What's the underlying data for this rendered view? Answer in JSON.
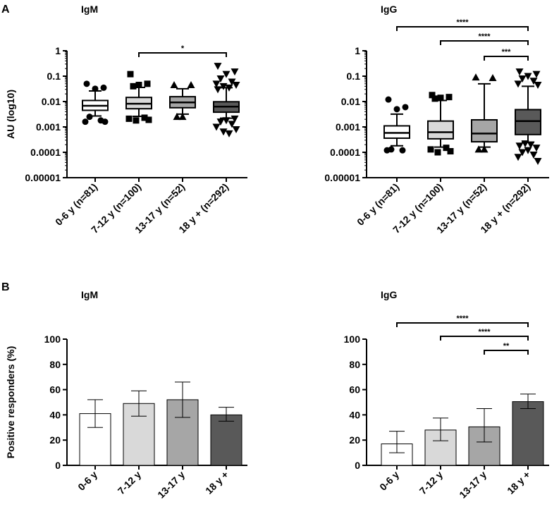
{
  "panels": [
    {
      "letter": "A"
    },
    {
      "letter": "B"
    }
  ],
  "chart_data": [
    {
      "type": "boxplot",
      "panel": "A",
      "title": "IgM",
      "ylabel": "AU (log10)",
      "yscale": "log",
      "ylim": [
        1e-05,
        1
      ],
      "yticks": [
        {
          "value": 1,
          "label": "1"
        },
        {
          "value": 0.1,
          "label": "0.1"
        },
        {
          "value": 0.01,
          "label": "0.01"
        },
        {
          "value": 0.001,
          "label": "0.001"
        },
        {
          "value": 0.0001,
          "label": "0.0001"
        },
        {
          "value": 1e-05,
          "label": "0.00001"
        }
      ],
      "categories": [
        "0-6 y (n=81)",
        "7-12 y (n=100)",
        "13-17 y (n=52)",
        "18 y + (n=292)"
      ],
      "fills": [
        "#ffffff",
        "#d9d9d9",
        "#a6a6a6",
        "#595959"
      ],
      "markers": [
        "circle",
        "square",
        "triangle-up",
        "triangle-down"
      ],
      "boxes": [
        {
          "whisker_low": 0.0027,
          "q1": 0.0045,
          "median": 0.0068,
          "q3": 0.011,
          "whisker_high": 0.026,
          "outliers": [
            0.05,
            0.035,
            0.032,
            0.0025,
            0.0018,
            0.0016,
            0.0016
          ]
        },
        {
          "whisker_low": 0.0026,
          "q1": 0.0052,
          "median": 0.0082,
          "q3": 0.0145,
          "whisker_high": 0.036,
          "outliers": [
            0.12,
            0.05,
            0.045,
            0.04,
            0.0023,
            0.0021,
            0.0019,
            0.0018
          ]
        },
        {
          "whisker_low": 0.0032,
          "q1": 0.0057,
          "median": 0.0092,
          "q3": 0.0155,
          "whisker_high": 0.032,
          "outliers": [
            0.045,
            0.045,
            0.0025,
            0.0025
          ]
        },
        {
          "whisker_low": 0.0022,
          "q1": 0.0038,
          "median": 0.0063,
          "q3": 0.0098,
          "whisker_high": 0.035,
          "outliers": [
            0.25,
            0.15,
            0.12,
            0.08,
            0.06,
            0.05,
            0.045,
            0.04,
            0.035,
            0.03,
            0.0021,
            0.0018,
            0.0016,
            0.0013,
            0.001,
            0.0008,
            0.00065,
            0.00055
          ]
        }
      ],
      "comparisons": [
        {
          "from": 1,
          "to": 3,
          "label": "*"
        }
      ]
    },
    {
      "type": "boxplot",
      "panel": "A",
      "title": "IgG",
      "ylabel": "",
      "yscale": "log",
      "ylim": [
        1e-05,
        1
      ],
      "yticks": [
        {
          "value": 1,
          "label": "1"
        },
        {
          "value": 0.1,
          "label": "0.1"
        },
        {
          "value": 0.01,
          "label": "0.01"
        },
        {
          "value": 0.001,
          "label": "0.001"
        },
        {
          "value": 0.0001,
          "label": "0.0001"
        },
        {
          "value": 1e-05,
          "label": "0.00001"
        }
      ],
      "categories": [
        "0-6 y (n=81)",
        "7-12 y (n=100)",
        "13-17 y (n=52)",
        "18 y + (n=292)"
      ],
      "fills": [
        "#ffffff",
        "#d9d9d9",
        "#a6a6a6",
        "#595959"
      ],
      "markers": [
        "circle",
        "square",
        "triangle-up",
        "triangle-down"
      ],
      "boxes": [
        {
          "whisker_low": 0.00018,
          "q1": 0.00036,
          "median": 0.00058,
          "q3": 0.0011,
          "whisker_high": 0.0032,
          "outliers": [
            0.012,
            0.006,
            0.005,
            0.00013,
            0.00012,
            0.00012
          ]
        },
        {
          "whisker_low": 0.00016,
          "q1": 0.00034,
          "median": 0.00062,
          "q3": 0.0017,
          "whisker_high": 0.011,
          "outliers": [
            0.018,
            0.015,
            0.014,
            0.013,
            0.00015,
            0.00013,
            0.00011,
            0.0001
          ]
        },
        {
          "whisker_low": 0.00016,
          "q1": 0.00026,
          "median": 0.00055,
          "q3": 0.0019,
          "whisker_high": 0.05,
          "outliers": [
            0.09,
            0.085,
            0.00013,
            0.00013
          ]
        },
        {
          "whisker_low": 0.00025,
          "q1": 0.0005,
          "median": 0.0017,
          "q3": 0.0048,
          "whisker_high": 0.04,
          "outliers": [
            0.15,
            0.12,
            0.1,
            0.08,
            0.065,
            0.05,
            0.045,
            0.00022,
            0.0002,
            0.00018,
            0.00015,
            0.00012,
            0.0001,
            8e-05,
            6.5e-05,
            4.5e-05
          ]
        }
      ],
      "comparisons": [
        {
          "from": 0,
          "to": 3,
          "label": "****"
        },
        {
          "from": 1,
          "to": 3,
          "label": "****"
        },
        {
          "from": 2,
          "to": 3,
          "label": "***"
        }
      ]
    },
    {
      "type": "bar",
      "panel": "B",
      "title": "IgM",
      "ylabel": "Positive responders (%)",
      "ylim": [
        0,
        100
      ],
      "yticks": [
        0,
        20,
        40,
        60,
        80,
        100
      ],
      "categories": [
        "0-6 y",
        "7-12 y",
        "13-17 y",
        "18 y +"
      ],
      "fills": [
        "#ffffff",
        "#d9d9d9",
        "#a6a6a6",
        "#595959"
      ],
      "values": [
        41,
        49,
        52,
        40
      ],
      "error_low": [
        30,
        39,
        38,
        35
      ],
      "error_high": [
        52,
        59,
        66,
        46
      ],
      "comparisons": []
    },
    {
      "type": "bar",
      "panel": "B",
      "title": "IgG",
      "ylabel": "",
      "ylim": [
        0,
        100
      ],
      "yticks": [
        0,
        20,
        40,
        60,
        80,
        100
      ],
      "categories": [
        "0-6 y",
        "7-12 y",
        "13-17 y",
        "18 y +"
      ],
      "fills": [
        "#ffffff",
        "#d9d9d9",
        "#a6a6a6",
        "#595959"
      ],
      "values": [
        17,
        28,
        30.5,
        50.5
      ],
      "error_low": [
        10,
        19.5,
        18.5,
        45
      ],
      "error_high": [
        27,
        37.5,
        45,
        56.5
      ],
      "comparisons": [
        {
          "from": 0,
          "to": 3,
          "label": "****"
        },
        {
          "from": 1,
          "to": 3,
          "label": "****"
        },
        {
          "from": 2,
          "to": 3,
          "label": "**"
        }
      ]
    }
  ]
}
